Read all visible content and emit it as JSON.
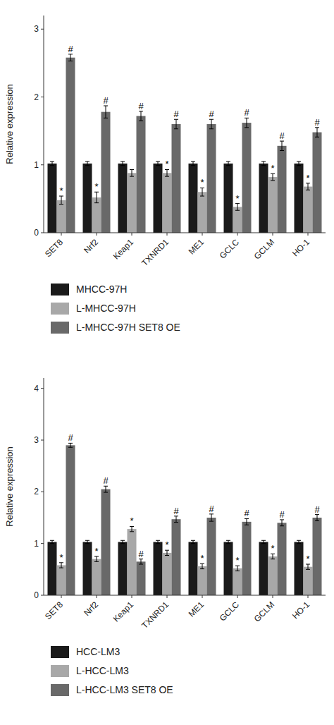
{
  "chart_data": [
    {
      "type": "bar",
      "categories": [
        "SET8",
        "Nrf2",
        "Keap1",
        "TXNRD1",
        "ME1",
        "GCLC",
        "GCLM",
        "HO-1"
      ],
      "series": [
        {
          "name": "MHCC-97H",
          "color": "#1a1a1a",
          "values": [
            1.02,
            1.02,
            1.02,
            1.02,
            1.02,
            1.02,
            1.02,
            1.02
          ],
          "errors": [
            0.03,
            0.03,
            0.03,
            0.03,
            0.03,
            0.03,
            0.03,
            0.03
          ]
        },
        {
          "name": "L-MHCC-97H",
          "color": "#a8a8a8",
          "values": [
            0.48,
            0.52,
            0.88,
            0.88,
            0.6,
            0.38,
            0.82,
            0.68
          ],
          "errors": [
            0.06,
            0.08,
            0.05,
            0.05,
            0.06,
            0.05,
            0.05,
            0.05
          ],
          "annotations": [
            "*",
            "*",
            null,
            "*",
            "*",
            "*",
            "*",
            "*"
          ]
        },
        {
          "name": "L-MHCC-97H SET8 OE",
          "color": "#696969",
          "values": [
            2.58,
            1.78,
            1.72,
            1.6,
            1.6,
            1.62,
            1.28,
            1.48
          ],
          "errors": [
            0.05,
            0.09,
            0.07,
            0.07,
            0.07,
            0.07,
            0.07,
            0.07
          ],
          "annotations": [
            "#",
            "#",
            "#",
            "#",
            "#",
            "#",
            "#",
            "#"
          ]
        }
      ],
      "ylabel": "Relative expression",
      "ylim": [
        0,
        3.2
      ],
      "yticks": [
        0,
        1,
        2,
        3
      ],
      "grid": false,
      "legend": "bottom"
    },
    {
      "type": "bar",
      "categories": [
        "SET8",
        "Nrf2",
        "Keap1",
        "TXNRD1",
        "ME1",
        "GCLC",
        "GCLM",
        "HO-1"
      ],
      "series": [
        {
          "name": "HCC-LM3",
          "color": "#1a1a1a",
          "values": [
            1.03,
            1.03,
            1.03,
            1.03,
            1.03,
            1.03,
            1.03,
            1.03
          ],
          "errors": [
            0.03,
            0.03,
            0.03,
            0.03,
            0.03,
            0.03,
            0.03,
            0.03
          ]
        },
        {
          "name": "L-HCC-LM3",
          "color": "#a8a8a8",
          "values": [
            0.58,
            0.7,
            1.28,
            0.82,
            0.56,
            0.52,
            0.75,
            0.55
          ],
          "errors": [
            0.05,
            0.05,
            0.05,
            0.05,
            0.05,
            0.05,
            0.05,
            0.05
          ],
          "annotations": [
            "*",
            "*",
            "*",
            "*",
            "*",
            "*",
            "*",
            "*"
          ]
        },
        {
          "name": "L-HCC-LM3 SET8 OE",
          "color": "#696969",
          "values": [
            2.9,
            2.05,
            0.65,
            1.47,
            1.5,
            1.42,
            1.4,
            1.5
          ],
          "errors": [
            0.04,
            0.06,
            0.05,
            0.06,
            0.07,
            0.06,
            0.06,
            0.06
          ],
          "annotations": [
            "#",
            "#",
            "#",
            "#",
            "#",
            "#",
            "#",
            "#"
          ]
        }
      ],
      "ylabel": "Relative expression",
      "ylim": [
        0,
        4.2
      ],
      "yticks": [
        0,
        1,
        2,
        3,
        4
      ],
      "grid": false,
      "legend": "bottom"
    }
  ]
}
